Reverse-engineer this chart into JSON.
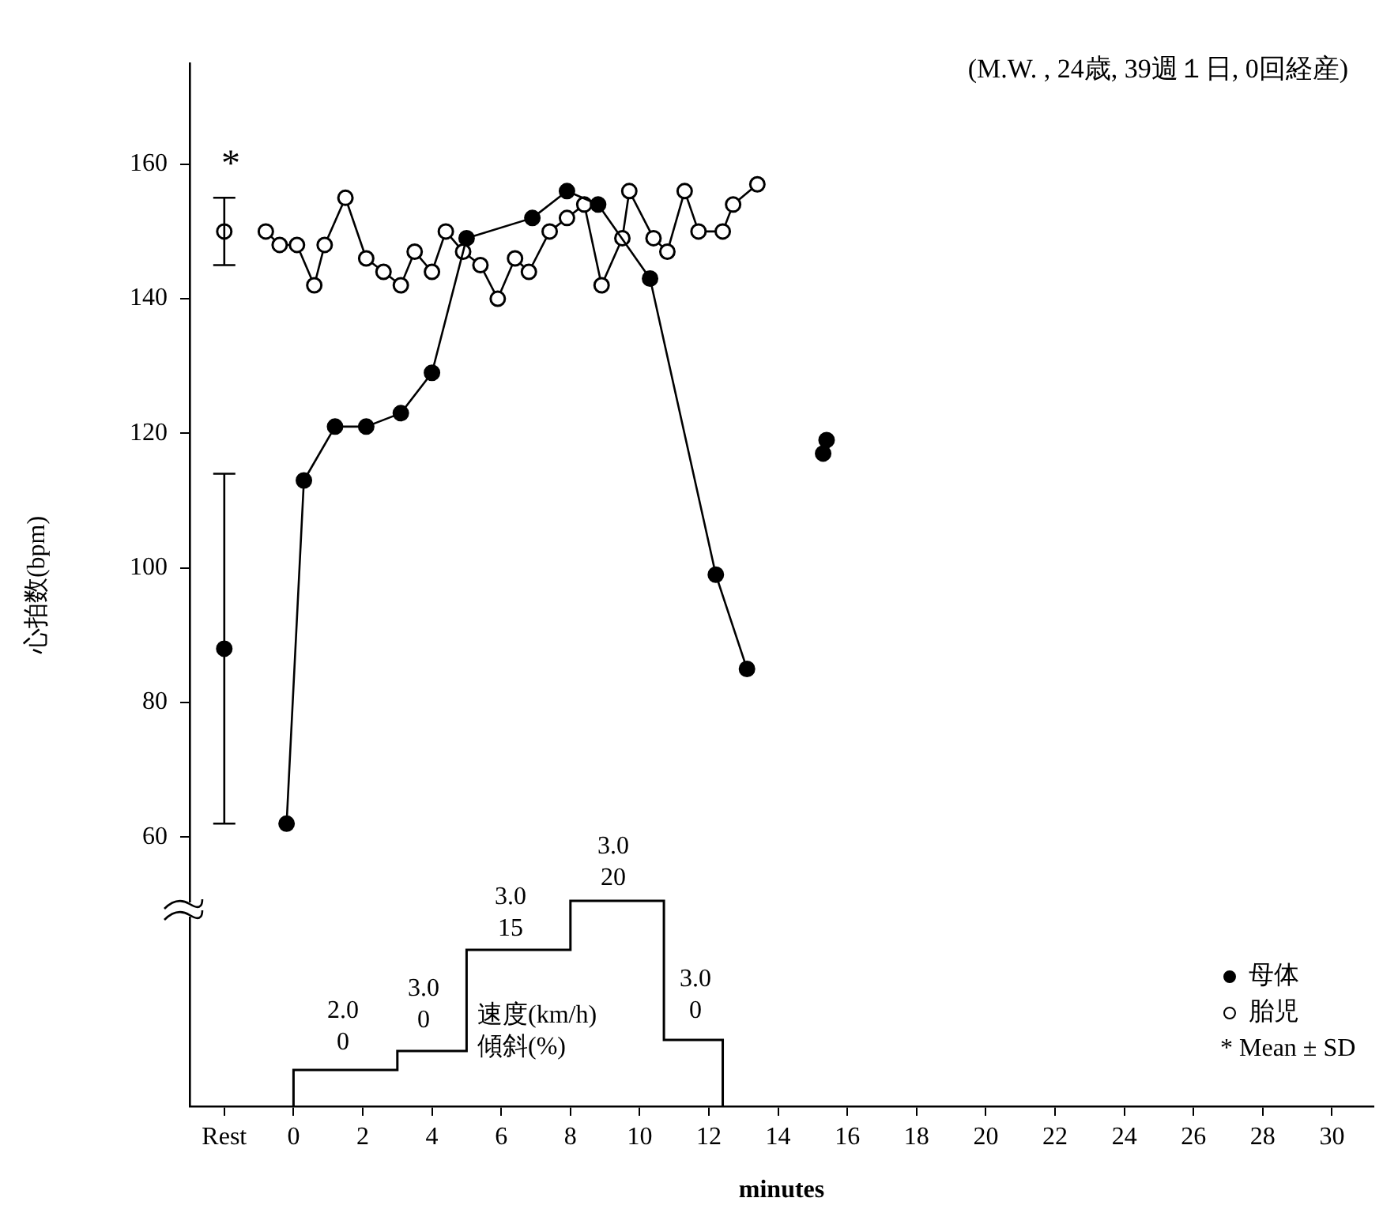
{
  "chart_data": {
    "type": "line",
    "title": "(M.W. , 24歳, 39週１日, 0回経産)",
    "xlabel": "minutes",
    "ylabel": "心拍数(bpm)",
    "xlim": [
      -3,
      31.2
    ],
    "xticks": [
      {
        "value": -2,
        "label": "Rest"
      },
      0,
      2,
      4,
      6,
      8,
      10,
      12,
      14,
      16,
      18,
      20,
      22,
      24,
      26,
      28,
      30
    ],
    "ylim": [
      20,
      175
    ],
    "yticks": [
      60,
      80,
      100,
      120,
      140,
      160
    ],
    "legend": "bottom right",
    "marker": "circle",
    "series": [
      {
        "name": "母体",
        "type": "line",
        "color": "#000000",
        "x": [
          -0.2,
          0.3,
          1.2,
          2.1,
          3.1,
          4.0,
          5.0,
          6.9,
          7.9,
          8.8,
          10.3,
          12.2,
          13.1
        ],
        "values": [
          62,
          113,
          121,
          121,
          123,
          129,
          149,
          152,
          156,
          154,
          143,
          99,
          85
        ]
      },
      {
        "name": "胎児",
        "type": "line",
        "color": "#ffffff",
        "x": [
          -0.8,
          -0.4,
          0.1,
          0.6,
          0.9,
          1.5,
          2.1,
          2.6,
          3.1,
          3.5,
          4.0,
          4.4,
          4.9,
          5.4,
          5.9,
          6.4,
          6.8,
          7.4,
          7.9,
          8.4,
          8.9,
          9.5,
          9.7,
          10.4,
          10.8,
          11.3,
          11.7,
          12.4,
          12.7,
          13.4
        ],
        "values": [
          150,
          148,
          148,
          142,
          148,
          155,
          146,
          144,
          142,
          147,
          144,
          150,
          147,
          145,
          140,
          146,
          144,
          150,
          152,
          154,
          142,
          149,
          156,
          149,
          147,
          156,
          150,
          150,
          154,
          157
        ]
      },
      {
        "type": "scatter",
        "color": "#000000",
        "x": [
          -2
        ],
        "values": [
          88
        ],
        "errors": [
          26
        ]
      },
      {
        "type": "scatter",
        "color": "#ffffff",
        "x": [
          -2
        ],
        "values": [
          150
        ],
        "errors": [
          5
        ]
      },
      {
        "type": "scatter",
        "color": "#000000",
        "x": [
          15.3,
          15.4
        ],
        "values": [
          117,
          119
        ]
      }
    ],
    "annotations": [
      "*",
      "2.0\n0",
      "3.0\n0",
      "3.0\n15",
      "3.0\n20",
      "3.0\n0",
      "速度(km/h)\n傾斜(%)",
      "* Mean ± SD"
    ]
  }
}
